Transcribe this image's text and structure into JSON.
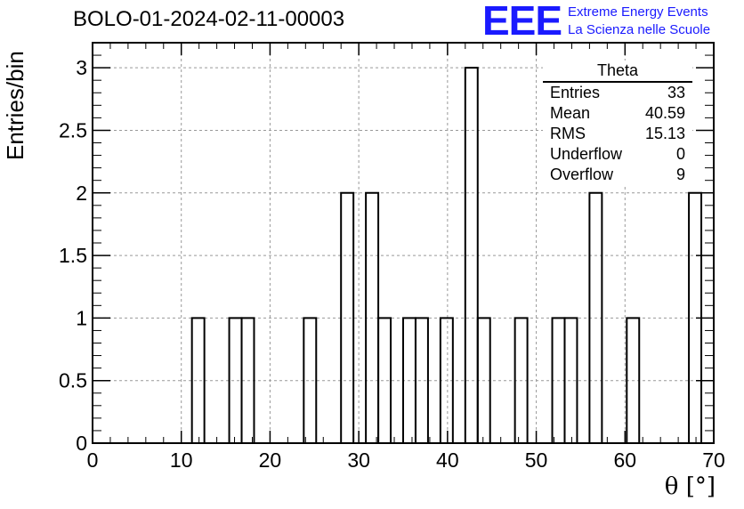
{
  "title": "BOLO-01-2024-02-11-00003",
  "logo": {
    "mark": "EEE",
    "line1": "Extreme Energy Events",
    "line2": "La Scienza nelle Scuole",
    "color": "#1a1aff"
  },
  "stats": {
    "title": "Theta",
    "rows": [
      {
        "label": "Entries",
        "value": "33"
      },
      {
        "label": "Mean",
        "value": "40.59"
      },
      {
        "label": "RMS",
        "value": "15.13"
      },
      {
        "label": "Underflow",
        "value": "0"
      },
      {
        "label": "Overflow",
        "value": "9"
      }
    ]
  },
  "chart_data": {
    "type": "bar",
    "title": "BOLO-01-2024-02-11-00003",
    "xlabel": "θ [°]",
    "ylabel": "Entries/bin",
    "xlim": [
      0,
      70
    ],
    "ylim": [
      0,
      3.2
    ],
    "grid": true,
    "bin_width": 1.4,
    "xticks": [
      "0",
      "10",
      "20",
      "30",
      "40",
      "50",
      "60",
      "70"
    ],
    "yticks": [
      "0",
      "0.5",
      "1",
      "1.5",
      "2",
      "2.5",
      "3"
    ],
    "bins": [
      {
        "x": 11.2,
        "value": 1
      },
      {
        "x": 15.4,
        "value": 1
      },
      {
        "x": 16.8,
        "value": 1
      },
      {
        "x": 23.8,
        "value": 1
      },
      {
        "x": 28.0,
        "value": 2
      },
      {
        "x": 30.8,
        "value": 2
      },
      {
        "x": 32.2,
        "value": 1
      },
      {
        "x": 35.0,
        "value": 1
      },
      {
        "x": 36.4,
        "value": 1
      },
      {
        "x": 39.2,
        "value": 1
      },
      {
        "x": 42.0,
        "value": 3
      },
      {
        "x": 43.4,
        "value": 1
      },
      {
        "x": 47.6,
        "value": 1
      },
      {
        "x": 51.8,
        "value": 1
      },
      {
        "x": 53.2,
        "value": 1
      },
      {
        "x": 56.0,
        "value": 2
      },
      {
        "x": 60.2,
        "value": 1
      },
      {
        "x": 67.2,
        "value": 2
      }
    ]
  }
}
